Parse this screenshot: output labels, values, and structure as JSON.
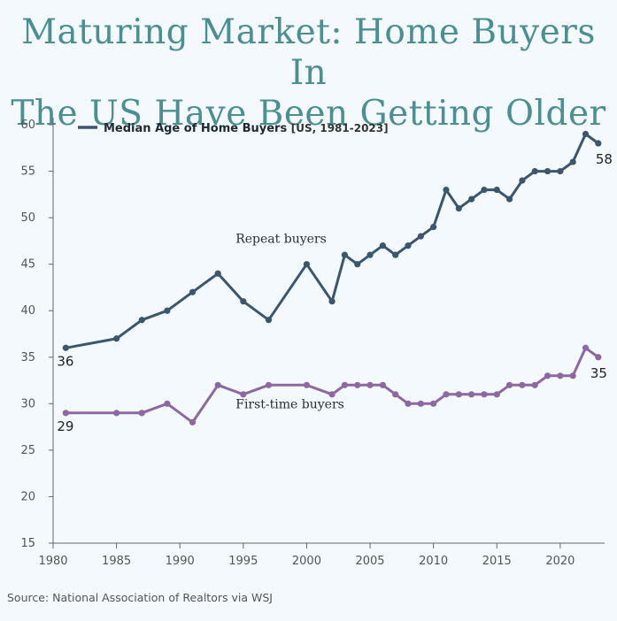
{
  "title_line1": "Maturing Market: Home Buyers In",
  "title_line2": "The US Have Been Getting Older",
  "source": "Source: National Association of Realtors via WSJ",
  "colors": {
    "repeat": "#3b566d",
    "first": "#8e68a3",
    "title": "#4a8f92"
  },
  "chart_data": {
    "type": "line",
    "legend": {
      "label": "Median Age of Home Buyers",
      "sublabel": "[US, 1981-2023]",
      "placement": "top-left"
    },
    "x_ticks": [
      1980,
      1985,
      1990,
      1995,
      2000,
      2005,
      2010,
      2015,
      2020
    ],
    "y_ticks": [
      15,
      20,
      25,
      30,
      35,
      40,
      45,
      50,
      55,
      60
    ],
    "xlim": [
      1980,
      2023.5
    ],
    "ylim": [
      15,
      60
    ],
    "grid": false,
    "annotations": {
      "repeat": "Repeat buyers",
      "first": "First-time buyers"
    },
    "series": [
      {
        "key": "repeat",
        "x": [
          1981,
          1985,
          1987,
          1989,
          1991,
          1993,
          1995,
          1997,
          2000,
          2002,
          2003,
          2004,
          2005,
          2006,
          2007,
          2008,
          2009,
          2010,
          2011,
          2012,
          2013,
          2014,
          2015,
          2016,
          2017,
          2018,
          2019,
          2020,
          2021,
          2022,
          2023
        ],
        "y": [
          36,
          37,
          39,
          40,
          42,
          44,
          41,
          39,
          45,
          41,
          46,
          45,
          46,
          47,
          46,
          47,
          48,
          49,
          53,
          51,
          52,
          53,
          53,
          52,
          54,
          55,
          55,
          55,
          56,
          59,
          58
        ],
        "start_label": "36",
        "end_label": "58"
      },
      {
        "key": "first",
        "x": [
          1981,
          1985,
          1987,
          1989,
          1991,
          1993,
          1995,
          1997,
          2000,
          2002,
          2003,
          2004,
          2005,
          2006,
          2007,
          2008,
          2009,
          2010,
          2011,
          2012,
          2013,
          2014,
          2015,
          2016,
          2017,
          2018,
          2019,
          2020,
          2021,
          2022,
          2023
        ],
        "y": [
          29,
          29,
          29,
          30,
          28,
          32,
          31,
          32,
          32,
          31,
          32,
          32,
          32,
          32,
          31,
          30,
          30,
          30,
          31,
          31,
          31,
          31,
          31,
          32,
          32,
          32,
          33,
          33,
          33,
          36,
          35
        ],
        "start_label": "29",
        "end_label": "35"
      }
    ]
  }
}
